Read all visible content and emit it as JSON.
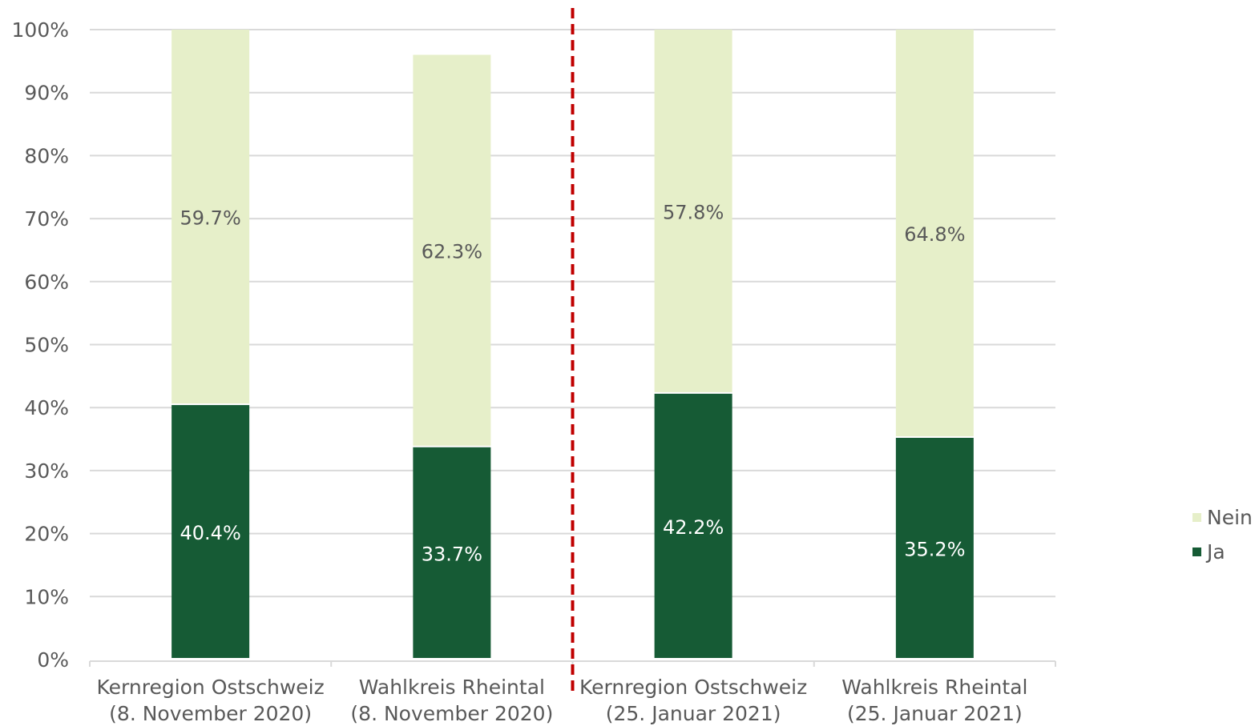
{
  "chart_data": {
    "type": "bar",
    "stacked": true,
    "categories": [
      [
        "Kernregion Ostschweiz",
        "(8. November 2020)"
      ],
      [
        "Wahlkreis Rheintal",
        "(8. November 2020)"
      ],
      [
        "Kernregion Ostschweiz",
        "(25. Januar 2021)"
      ],
      [
        "Wahlkreis Rheintal",
        "(25. Januar 2021)"
      ]
    ],
    "series": [
      {
        "name": "Ja",
        "values": [
          40.4,
          33.7,
          42.2,
          35.2
        ],
        "labels": [
          "40.4%",
          "33.7%",
          "42.2%",
          "35.2%"
        ],
        "color": "#165b35",
        "label_color": "#ffffff"
      },
      {
        "name": "Nein",
        "values": [
          59.7,
          62.3,
          57.8,
          64.8
        ],
        "labels": [
          "59.7%",
          "62.3%",
          "57.8%",
          "64.8%"
        ],
        "color": "#e6efc9",
        "label_color": "#595959"
      }
    ],
    "ylim": [
      0,
      100
    ],
    "yticks": [
      "0%",
      "10%",
      "20%",
      "30%",
      "40%",
      "50%",
      "60%",
      "70%",
      "80%",
      "90%",
      "100%"
    ],
    "grid": true,
    "legend_position": "right",
    "legend_order": [
      "Nein",
      "Ja"
    ],
    "divider": {
      "between_categories": [
        1,
        2
      ],
      "style": "dashed",
      "color": "#c00000"
    },
    "axis_color": "#d9d9d9"
  }
}
